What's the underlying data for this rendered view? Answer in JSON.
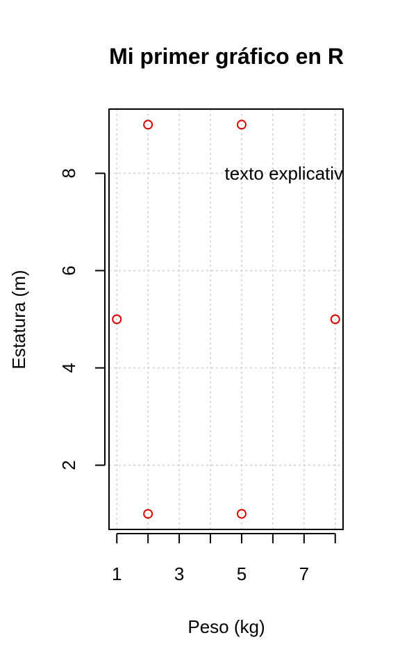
{
  "chart_data": {
    "type": "scatter",
    "title": "Mi primer gráfico en R",
    "xlabel": "Peso (kg)",
    "ylabel": "Estatura (m)",
    "xlim": [
      0.75,
      8.25
    ],
    "ylim": [
      0.68,
      9.32
    ],
    "x_ticks": [
      1,
      2,
      3,
      4,
      5,
      6,
      7,
      8
    ],
    "x_tick_labels": [
      "1",
      "",
      "3",
      "",
      "5",
      "",
      "7",
      ""
    ],
    "y_ticks": [
      2,
      4,
      6,
      8
    ],
    "y_tick_labels": [
      "2",
      "4",
      "6",
      "8"
    ],
    "grid": true,
    "point_color": "#dd0000",
    "grid_color": "#d0d0d0",
    "points": [
      {
        "x": 2,
        "y": 9
      },
      {
        "x": 5,
        "y": 9
      },
      {
        "x": 1,
        "y": 5
      },
      {
        "x": 8,
        "y": 5
      },
      {
        "x": 2,
        "y": 1
      },
      {
        "x": 5,
        "y": 1
      }
    ],
    "annotation": {
      "text": "texto explicativo",
      "x": 4.5,
      "y": 8
    }
  }
}
